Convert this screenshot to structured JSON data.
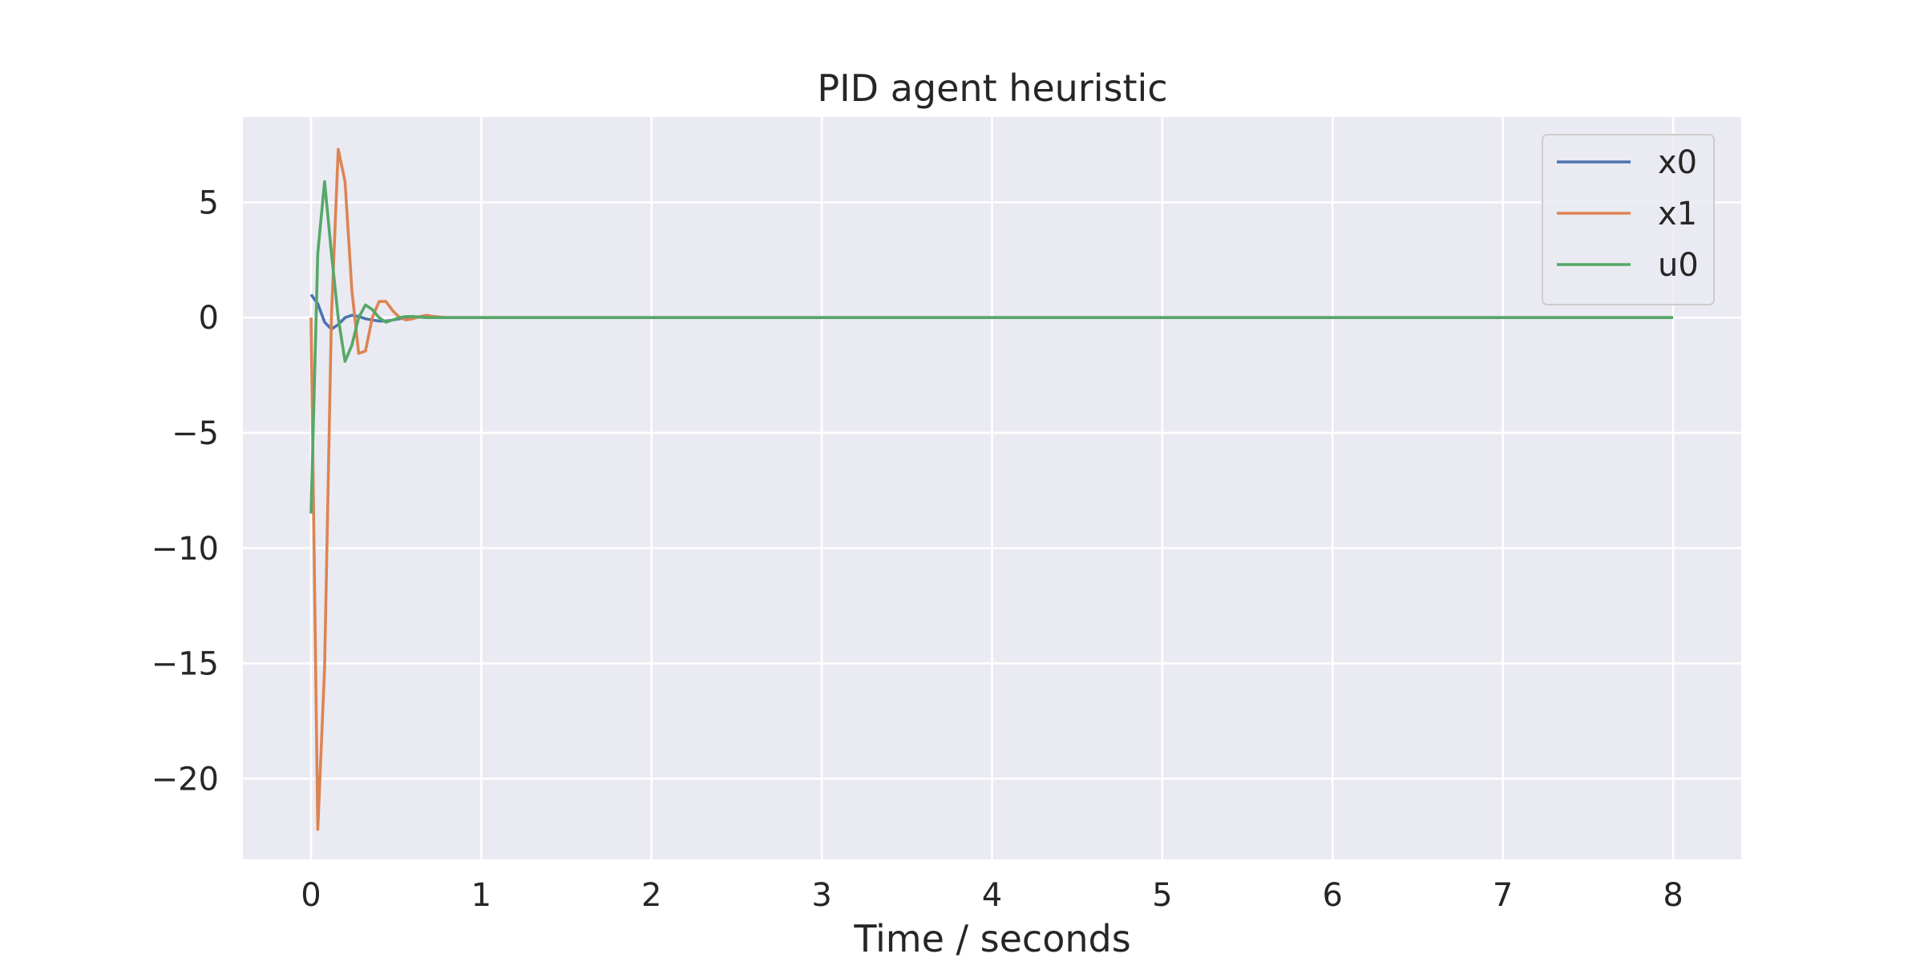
{
  "chart_data": {
    "type": "line",
    "title": "PID agent heuristic",
    "xlabel": "Time / seconds",
    "ylabel": "",
    "xlim": [
      -0.4,
      8.4
    ],
    "ylim": [
      -23.5,
      8.7
    ],
    "xticks": [
      0,
      1,
      2,
      3,
      4,
      5,
      6,
      7,
      8
    ],
    "yticks": [
      5,
      0,
      -5,
      -10,
      -15,
      -20
    ],
    "ytick_labels": [
      "5",
      "0",
      "−5",
      "−10",
      "−15",
      "−20"
    ],
    "grid": true,
    "legend_position": "top-right",
    "background": "#eaeaf2",
    "series": [
      {
        "name": "x0",
        "color": "#4c72b0",
        "x": [
          0,
          0.04,
          0.08,
          0.12,
          0.16,
          0.2,
          0.24,
          0.28,
          0.32,
          0.36,
          0.4,
          0.44,
          0.48,
          0.52,
          0.56,
          0.6,
          0.64,
          0.68,
          0.72,
          0.8,
          1.0,
          8.0
        ],
        "y": [
          1.0,
          0.6,
          -0.2,
          -0.5,
          -0.3,
          0.0,
          0.1,
          0.05,
          -0.05,
          -0.1,
          -0.15,
          -0.15,
          -0.1,
          -0.05,
          0.0,
          0.02,
          0.02,
          0.01,
          0.0,
          0.0,
          0.0,
          0.0
        ]
      },
      {
        "name": "x1",
        "color": "#dd8452",
        "x": [
          0,
          0.04,
          0.08,
          0.12,
          0.16,
          0.2,
          0.24,
          0.28,
          0.32,
          0.36,
          0.4,
          0.44,
          0.48,
          0.52,
          0.56,
          0.6,
          0.64,
          0.68,
          0.72,
          0.8,
          1.0,
          8.0
        ],
        "y": [
          0.0,
          -22.2,
          -15.2,
          0.0,
          7.3,
          5.9,
          1.2,
          -1.55,
          -1.45,
          0.0,
          0.7,
          0.7,
          0.3,
          0.0,
          -0.1,
          -0.05,
          0.05,
          0.1,
          0.05,
          0.0,
          0.0,
          0.0
        ]
      },
      {
        "name": "u0",
        "color": "#55a868",
        "x": [
          0,
          0.04,
          0.08,
          0.12,
          0.16,
          0.2,
          0.24,
          0.28,
          0.32,
          0.36,
          0.4,
          0.44,
          0.48,
          0.52,
          0.56,
          0.6,
          0.64,
          0.68,
          0.72,
          0.8,
          1.0,
          8.0
        ],
        "y": [
          -8.5,
          2.8,
          5.9,
          2.8,
          0.0,
          -1.9,
          -1.2,
          0.0,
          0.55,
          0.35,
          0.0,
          -0.2,
          -0.1,
          0.0,
          0.05,
          0.05,
          0.02,
          0.0,
          0.0,
          0.0,
          0.0,
          0.0
        ]
      }
    ]
  }
}
